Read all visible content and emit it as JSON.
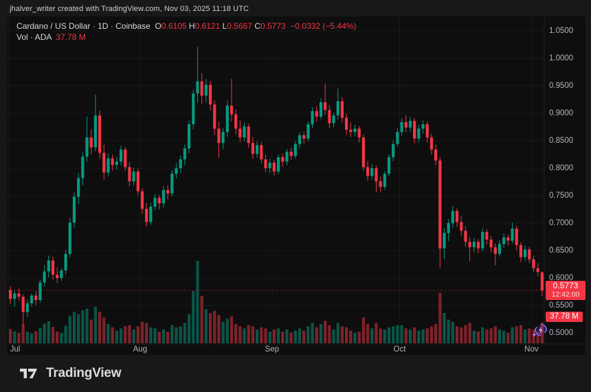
{
  "attribution": "jhalver_writer created with TradingView.com, Nov 03, 2025 11:18 UTC",
  "header": {
    "title": "Cardano / US Dollar",
    "sep": "·",
    "interval": "1D",
    "exchange": "Coinbase",
    "open_label": "O",
    "open": "0.6105",
    "high_label": "H",
    "high": "0.6121",
    "low_label": "L",
    "low": "0.5667",
    "close_label": "C",
    "close": "0.5773",
    "change": "−0.0332 (−5.44%)",
    "vol_label": "Vol · ADA",
    "vol_value": "37.78 M"
  },
  "price_axis": {
    "ticks": [
      "1.0500",
      "1.0000",
      "0.9500",
      "0.9000",
      "0.8500",
      "0.8000",
      "0.7500",
      "0.7000",
      "0.6500",
      "0.6000",
      "0.5500",
      "0.5000"
    ],
    "last_price": "0.5773",
    "countdown": "12:42:00",
    "last_volume": "37.78 M"
  },
  "time_axis": {
    "months": [
      {
        "label": "Jul",
        "candle_index": 0
      },
      {
        "label": "Aug",
        "candle_index": 31
      },
      {
        "label": "Sep",
        "candle_index": 62
      },
      {
        "label": "Oct",
        "candle_index": 92
      },
      {
        "label": "Nov",
        "candle_index": 123
      }
    ]
  },
  "footer": {
    "brand": "TradingView"
  },
  "colors": {
    "up": "#089981",
    "down": "#f23645",
    "label_bg": "#f23645",
    "axis_text": "#b2b5be",
    "text": "#d1d4dc",
    "panel_bg": "#0e0e0e",
    "outer_bg": "#181818",
    "accent_purple": "#8d5cf6",
    "grid": "rgba(255,255,255,0.045)"
  },
  "chart_data": {
    "type": "candlestick",
    "title": "Cardano / US Dollar, 1D, Coinbase",
    "legend_ohlc": {
      "open": 0.6105,
      "high": 0.6121,
      "low": 0.5667,
      "close": 0.5773,
      "change": -0.0332,
      "change_pct": -5.44
    },
    "volume_pane": {
      "label": "Vol · ADA",
      "last_value_millions": 37.78
    },
    "visible_price_range": [
      0.5,
      1.05
    ],
    "price_tick_step": 0.05,
    "last_price": 0.5773,
    "countdown": "12:42:00",
    "series_start": "Jul 1",
    "series_end": "Nov 3",
    "grid": "on",
    "fields": [
      "open",
      "high",
      "low",
      "close",
      "volume_millions"
    ],
    "candles": [
      [
        0.578,
        0.585,
        0.553,
        0.562,
        26
      ],
      [
        0.562,
        0.578,
        0.548,
        0.572,
        22
      ],
      [
        0.572,
        0.581,
        0.559,
        0.566,
        19
      ],
      [
        0.566,
        0.57,
        0.512,
        0.538,
        34
      ],
      [
        0.538,
        0.561,
        0.529,
        0.554,
        21
      ],
      [
        0.554,
        0.572,
        0.548,
        0.568,
        18
      ],
      [
        0.568,
        0.576,
        0.551,
        0.56,
        22
      ],
      [
        0.56,
        0.597,
        0.555,
        0.592,
        28
      ],
      [
        0.592,
        0.623,
        0.585,
        0.612,
        36
      ],
      [
        0.612,
        0.641,
        0.601,
        0.632,
        40
      ],
      [
        0.632,
        0.639,
        0.597,
        0.606,
        30
      ],
      [
        0.606,
        0.619,
        0.591,
        0.6,
        21
      ],
      [
        0.6,
        0.618,
        0.595,
        0.614,
        19
      ],
      [
        0.614,
        0.651,
        0.607,
        0.644,
        32
      ],
      [
        0.644,
        0.709,
        0.638,
        0.701,
        50
      ],
      [
        0.701,
        0.756,
        0.692,
        0.748,
        57
      ],
      [
        0.748,
        0.791,
        0.734,
        0.782,
        53
      ],
      [
        0.782,
        0.829,
        0.769,
        0.821,
        60
      ],
      [
        0.821,
        0.894,
        0.812,
        0.856,
        63
      ],
      [
        0.856,
        0.871,
        0.825,
        0.838,
        43
      ],
      [
        0.838,
        0.934,
        0.831,
        0.896,
        66
      ],
      [
        0.896,
        0.905,
        0.817,
        0.828,
        57
      ],
      [
        0.828,
        0.843,
        0.779,
        0.792,
        47
      ],
      [
        0.792,
        0.827,
        0.785,
        0.818,
        35
      ],
      [
        0.818,
        0.825,
        0.795,
        0.806,
        29
      ],
      [
        0.806,
        0.821,
        0.797,
        0.812,
        23
      ],
      [
        0.812,
        0.841,
        0.805,
        0.834,
        27
      ],
      [
        0.834,
        0.839,
        0.795,
        0.802,
        31
      ],
      [
        0.802,
        0.811,
        0.767,
        0.776,
        33
      ],
      [
        0.776,
        0.801,
        0.769,
        0.794,
        25
      ],
      [
        0.794,
        0.799,
        0.751,
        0.758,
        31
      ],
      [
        0.758,
        0.763,
        0.717,
        0.726,
        39
      ],
      [
        0.726,
        0.737,
        0.694,
        0.702,
        37
      ],
      [
        0.702,
        0.737,
        0.697,
        0.73,
        29
      ],
      [
        0.73,
        0.753,
        0.723,
        0.746,
        27
      ],
      [
        0.746,
        0.751,
        0.725,
        0.736,
        21
      ],
      [
        0.736,
        0.767,
        0.729,
        0.76,
        25
      ],
      [
        0.76,
        0.769,
        0.743,
        0.754,
        21
      ],
      [
        0.754,
        0.797,
        0.749,
        0.79,
        33
      ],
      [
        0.79,
        0.809,
        0.781,
        0.8,
        29
      ],
      [
        0.8,
        0.823,
        0.791,
        0.816,
        31
      ],
      [
        0.816,
        0.843,
        0.805,
        0.836,
        37
      ],
      [
        0.836,
        0.887,
        0.827,
        0.88,
        53
      ],
      [
        0.88,
        0.943,
        0.871,
        0.936,
        95
      ],
      [
        0.936,
        1.021,
        0.919,
        0.958,
        150
      ],
      [
        0.958,
        0.973,
        0.917,
        0.932,
        86
      ],
      [
        0.932,
        0.963,
        0.919,
        0.952,
        62
      ],
      [
        0.952,
        0.959,
        0.905,
        0.916,
        55
      ],
      [
        0.916,
        0.923,
        0.861,
        0.872,
        59
      ],
      [
        0.872,
        0.885,
        0.819,
        0.846,
        51
      ],
      [
        0.846,
        0.873,
        0.835,
        0.866,
        39
      ],
      [
        0.866,
        0.923,
        0.857,
        0.914,
        45
      ],
      [
        0.914,
        0.963,
        0.885,
        0.898,
        49
      ],
      [
        0.898,
        0.907,
        0.861,
        0.872,
        35
      ],
      [
        0.872,
        0.887,
        0.847,
        0.856,
        31
      ],
      [
        0.856,
        0.883,
        0.849,
        0.876,
        27
      ],
      [
        0.876,
        0.881,
        0.837,
        0.846,
        33
      ],
      [
        0.846,
        0.857,
        0.817,
        0.826,
        31
      ],
      [
        0.826,
        0.849,
        0.819,
        0.842,
        25
      ],
      [
        0.842,
        0.847,
        0.809,
        0.816,
        29
      ],
      [
        0.816,
        0.825,
        0.793,
        0.8,
        27
      ],
      [
        0.8,
        0.817,
        0.791,
        0.81,
        21
      ],
      [
        0.81,
        0.815,
        0.787,
        0.794,
        25
      ],
      [
        0.794,
        0.825,
        0.789,
        0.82,
        27
      ],
      [
        0.82,
        0.827,
        0.803,
        0.812,
        21
      ],
      [
        0.812,
        0.835,
        0.805,
        0.83,
        25
      ],
      [
        0.83,
        0.837,
        0.815,
        0.822,
        19
      ],
      [
        0.822,
        0.849,
        0.817,
        0.844,
        23
      ],
      [
        0.844,
        0.865,
        0.837,
        0.86,
        27
      ],
      [
        0.86,
        0.867,
        0.845,
        0.854,
        23
      ],
      [
        0.854,
        0.885,
        0.849,
        0.88,
        31
      ],
      [
        0.88,
        0.911,
        0.873,
        0.904,
        37
      ],
      [
        0.904,
        0.913,
        0.885,
        0.894,
        29
      ],
      [
        0.894,
        0.927,
        0.889,
        0.92,
        35
      ],
      [
        0.92,
        0.954,
        0.897,
        0.906,
        41
      ],
      [
        0.906,
        0.915,
        0.873,
        0.882,
        33
      ],
      [
        0.882,
        0.901,
        0.875,
        0.896,
        25
      ],
      [
        0.896,
        0.945,
        0.889,
        0.922,
        37
      ],
      [
        0.922,
        0.929,
        0.883,
        0.892,
        31
      ],
      [
        0.892,
        0.899,
        0.861,
        0.87,
        29
      ],
      [
        0.87,
        0.883,
        0.857,
        0.866,
        23
      ],
      [
        0.866,
        0.879,
        0.859,
        0.872,
        19
      ],
      [
        0.872,
        0.877,
        0.847,
        0.856,
        21
      ],
      [
        0.856,
        0.861,
        0.795,
        0.802,
        47
      ],
      [
        0.802,
        0.813,
        0.777,
        0.786,
        35
      ],
      [
        0.786,
        0.807,
        0.779,
        0.8,
        27
      ],
      [
        0.8,
        0.805,
        0.756,
        0.776,
        37
      ],
      [
        0.776,
        0.785,
        0.757,
        0.766,
        27
      ],
      [
        0.766,
        0.795,
        0.761,
        0.79,
        25
      ],
      [
        0.79,
        0.825,
        0.785,
        0.82,
        29
      ],
      [
        0.82,
        0.851,
        0.813,
        0.844,
        31
      ],
      [
        0.844,
        0.873,
        0.839,
        0.866,
        33
      ],
      [
        0.866,
        0.891,
        0.859,
        0.884,
        33
      ],
      [
        0.884,
        0.897,
        0.865,
        0.874,
        27
      ],
      [
        0.874,
        0.893,
        0.867,
        0.886,
        25
      ],
      [
        0.886,
        0.891,
        0.845,
        0.854,
        29
      ],
      [
        0.854,
        0.879,
        0.847,
        0.872,
        23
      ],
      [
        0.872,
        0.887,
        0.863,
        0.88,
        25
      ],
      [
        0.88,
        0.885,
        0.847,
        0.856,
        27
      ],
      [
        0.856,
        0.863,
        0.825,
        0.834,
        31
      ],
      [
        0.834,
        0.843,
        0.805,
        0.814,
        35
      ],
      [
        0.814,
        0.82,
        0.618,
        0.654,
        92
      ],
      [
        0.654,
        0.691,
        0.635,
        0.682,
        55
      ],
      [
        0.682,
        0.707,
        0.667,
        0.7,
        43
      ],
      [
        0.7,
        0.731,
        0.691,
        0.722,
        39
      ],
      [
        0.722,
        0.727,
        0.693,
        0.702,
        31
      ],
      [
        0.702,
        0.713,
        0.677,
        0.686,
        29
      ],
      [
        0.686,
        0.695,
        0.657,
        0.666,
        33
      ],
      [
        0.666,
        0.675,
        0.631,
        0.656,
        37
      ],
      [
        0.656,
        0.673,
        0.647,
        0.666,
        23
      ],
      [
        0.666,
        0.671,
        0.645,
        0.654,
        21
      ],
      [
        0.654,
        0.691,
        0.649,
        0.684,
        29
      ],
      [
        0.684,
        0.689,
        0.661,
        0.67,
        25
      ],
      [
        0.67,
        0.677,
        0.647,
        0.656,
        27
      ],
      [
        0.656,
        0.663,
        0.623,
        0.644,
        31
      ],
      [
        0.644,
        0.669,
        0.639,
        0.662,
        25
      ],
      [
        0.662,
        0.681,
        0.655,
        0.674,
        23
      ],
      [
        0.674,
        0.679,
        0.659,
        0.668,
        19
      ],
      [
        0.668,
        0.701,
        0.663,
        0.69,
        29
      ],
      [
        0.69,
        0.695,
        0.651,
        0.66,
        31
      ],
      [
        0.66,
        0.665,
        0.629,
        0.638,
        33
      ],
      [
        0.638,
        0.659,
        0.631,
        0.652,
        25
      ],
      [
        0.652,
        0.657,
        0.627,
        0.634,
        27
      ],
      [
        0.634,
        0.641,
        0.611,
        0.618,
        25
      ],
      [
        0.618,
        0.627,
        0.603,
        0.611,
        21
      ],
      [
        0.6105,
        0.6121,
        0.5667,
        0.5773,
        37.78
      ]
    ]
  }
}
